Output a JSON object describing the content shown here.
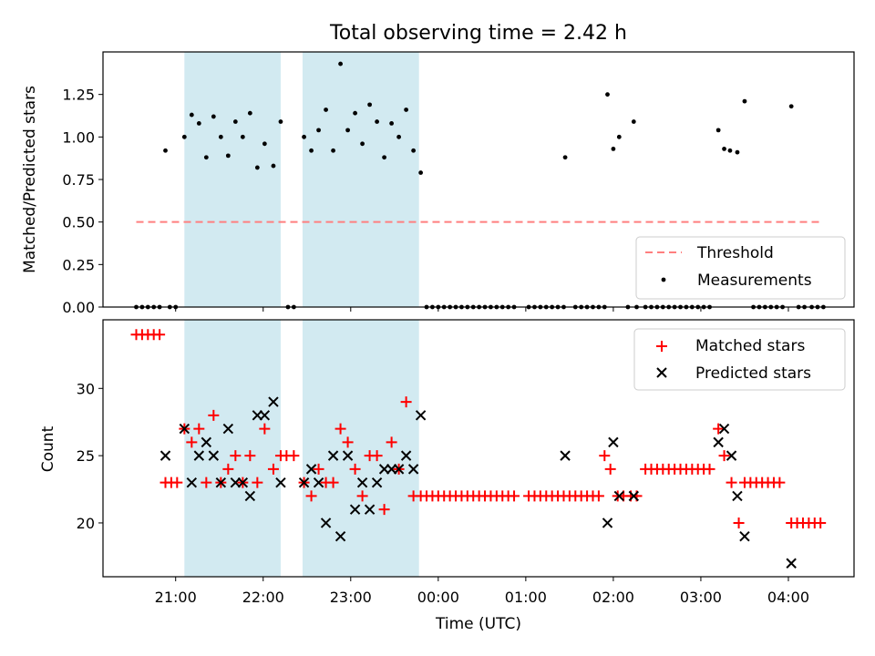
{
  "chart_data": [
    {
      "type": "scatter",
      "title": "Total observing time = 2.42 h",
      "xlabel": "",
      "ylabel": "Matched/Predicted stars",
      "xlim": [
        20.17,
        4.75
      ],
      "ylim": [
        0,
        1.5
      ],
      "yticks": [
        "0.00",
        "0.25",
        "0.50",
        "0.75",
        "1.00",
        "1.25"
      ],
      "shaded_intervals": [
        [
          21.1,
          22.2
        ],
        [
          22.45,
          23.78
        ]
      ],
      "shade_color": "#add8e6",
      "legend_position": "lower right",
      "legend": [
        "Threshold",
        "Measurements"
      ],
      "threshold": {
        "name": "Threshold",
        "y": 0.5,
        "x_range": [
          20.55,
          4.4
        ],
        "color": "#ff7f7f"
      },
      "series": [
        {
          "name": "Measurements",
          "color": "#000000",
          "points": [
            [
              "20:33",
              0
            ],
            [
              "20:37",
              0
            ],
            [
              "20:41",
              0
            ],
            [
              "20:45",
              0
            ],
            [
              "20:49",
              0
            ],
            [
              "20:56",
              0
            ],
            [
              "21:00",
              0
            ],
            [
              "20:53",
              0.92
            ],
            [
              "21:06",
              1.0
            ],
            [
              "21:11",
              1.13
            ],
            [
              "21:16",
              1.08
            ],
            [
              "21:21",
              0.88
            ],
            [
              "21:26",
              1.12
            ],
            [
              "21:31",
              1.0
            ],
            [
              "21:36",
              0.89
            ],
            [
              "21:41",
              1.09
            ],
            [
              "21:46",
              1.0
            ],
            [
              "21:51",
              1.14
            ],
            [
              "21:56",
              0.82
            ],
            [
              "22:01",
              0.96
            ],
            [
              "22:07",
              0.83
            ],
            [
              "22:12",
              1.09
            ],
            [
              "22:17",
              0
            ],
            [
              "22:21",
              0
            ],
            [
              "22:28",
              1.0
            ],
            [
              "22:33",
              0.92
            ],
            [
              "22:38",
              1.04
            ],
            [
              "22:43",
              1.16
            ],
            [
              "22:48",
              0.92
            ],
            [
              "22:53",
              1.43
            ],
            [
              "22:58",
              1.04
            ],
            [
              "23:03",
              1.14
            ],
            [
              "23:08",
              0.96
            ],
            [
              "23:13",
              1.19
            ],
            [
              "23:18",
              1.09
            ],
            [
              "23:23",
              0.88
            ],
            [
              "23:28",
              1.08
            ],
            [
              "23:33",
              1.0
            ],
            [
              "23:38",
              1.16
            ],
            [
              "23:43",
              0.92
            ],
            [
              "23:48",
              0.79
            ],
            [
              "23:52",
              0
            ],
            [
              "23:56",
              0
            ],
            [
              "00:00",
              0
            ],
            [
              "00:04",
              0
            ],
            [
              "00:08",
              0
            ],
            [
              "00:12",
              0
            ],
            [
              "00:16",
              0
            ],
            [
              "00:20",
              0
            ],
            [
              "00:24",
              0
            ],
            [
              "00:28",
              0
            ],
            [
              "00:32",
              0
            ],
            [
              "00:36",
              0
            ],
            [
              "00:40",
              0
            ],
            [
              "00:44",
              0
            ],
            [
              "00:48",
              0
            ],
            [
              "00:52",
              0
            ],
            [
              "01:02",
              0
            ],
            [
              "01:06",
              0
            ],
            [
              "01:10",
              0
            ],
            [
              "01:14",
              0
            ],
            [
              "01:18",
              0
            ],
            [
              "01:22",
              0
            ],
            [
              "01:26",
              0
            ],
            [
              "01:34",
              0
            ],
            [
              "01:38",
              0
            ],
            [
              "01:42",
              0
            ],
            [
              "01:46",
              0
            ],
            [
              "01:50",
              0
            ],
            [
              "01:54",
              0
            ],
            [
              "01:27",
              0.88
            ],
            [
              "01:56",
              1.25
            ],
            [
              "02:00",
              0.93
            ],
            [
              "02:04",
              1.0
            ],
            [
              "02:14",
              1.09
            ],
            [
              "02:10",
              0
            ],
            [
              "02:16",
              0
            ],
            [
              "02:22",
              0
            ],
            [
              "02:26",
              0
            ],
            [
              "02:30",
              0
            ],
            [
              "02:34",
              0
            ],
            [
              "02:38",
              0
            ],
            [
              "02:42",
              0
            ],
            [
              "02:46",
              0
            ],
            [
              "02:50",
              0
            ],
            [
              "02:54",
              0
            ],
            [
              "02:58",
              0
            ],
            [
              "03:02",
              0
            ],
            [
              "03:06",
              0
            ],
            [
              "03:12",
              1.04
            ],
            [
              "03:16",
              0.93
            ],
            [
              "03:20",
              0.92
            ],
            [
              "03:25",
              0.91
            ],
            [
              "03:30",
              1.21
            ],
            [
              "03:36",
              0
            ],
            [
              "03:40",
              0
            ],
            [
              "03:44",
              0
            ],
            [
              "03:48",
              0
            ],
            [
              "03:52",
              0
            ],
            [
              "03:56",
              0
            ],
            [
              "04:02",
              1.18
            ],
            [
              "04:07",
              0
            ],
            [
              "04:11",
              0
            ],
            [
              "04:16",
              0
            ],
            [
              "04:20",
              0
            ],
            [
              "04:24",
              0
            ]
          ]
        }
      ]
    },
    {
      "type": "scatter",
      "title": "",
      "xlabel": "Time (UTC)",
      "ylabel": "Count",
      "xlim": [
        20.17,
        4.75
      ],
      "ylim": [
        16.0,
        35.1
      ],
      "xticks": [
        "21:00",
        "22:00",
        "23:00",
        "00:00",
        "01:00",
        "02:00",
        "03:00",
        "04:00"
      ],
      "yticks": [
        "20",
        "25",
        "30"
      ],
      "shaded_intervals": [
        [
          21.1,
          22.2
        ],
        [
          22.45,
          23.78
        ]
      ],
      "shade_color": "#add8e6",
      "legend_position": "upper right",
      "legend": [
        "Matched stars",
        "Predicted stars"
      ],
      "series": [
        {
          "name": "Matched stars",
          "marker": "+",
          "color": "#ff0000",
          "points": [
            [
              "20:33",
              34
            ],
            [
              "20:37",
              34
            ],
            [
              "20:41",
              34
            ],
            [
              "20:45",
              34
            ],
            [
              "20:49",
              34
            ],
            [
              "20:53",
              23
            ],
            [
              "20:57",
              23
            ],
            [
              "21:01",
              23
            ],
            [
              "21:06",
              27
            ],
            [
              "21:11",
              26
            ],
            [
              "21:16",
              27
            ],
            [
              "21:21",
              23
            ],
            [
              "21:26",
              28
            ],
            [
              "21:31",
              23
            ],
            [
              "21:36",
              24
            ],
            [
              "21:41",
              25
            ],
            [
              "21:46",
              23
            ],
            [
              "21:51",
              25
            ],
            [
              "21:56",
              23
            ],
            [
              "22:01",
              27
            ],
            [
              "22:07",
              24
            ],
            [
              "22:12",
              25
            ],
            [
              "22:16",
              25
            ],
            [
              "22:21",
              25
            ],
            [
              "22:28",
              23
            ],
            [
              "22:33",
              22
            ],
            [
              "22:38",
              24
            ],
            [
              "22:43",
              23
            ],
            [
              "22:48",
              23
            ],
            [
              "22:53",
              27
            ],
            [
              "22:58",
              26
            ],
            [
              "23:03",
              24
            ],
            [
              "23:08",
              22
            ],
            [
              "23:13",
              25
            ],
            [
              "23:18",
              25
            ],
            [
              "23:23",
              21
            ],
            [
              "23:28",
              26
            ],
            [
              "23:33",
              24
            ],
            [
              "23:38",
              29
            ],
            [
              "23:43",
              22
            ],
            [
              "23:48",
              22
            ],
            [
              "23:52",
              22
            ],
            [
              "23:56",
              22
            ],
            [
              "00:00",
              22
            ],
            [
              "00:04",
              22
            ],
            [
              "00:08",
              22
            ],
            [
              "00:12",
              22
            ],
            [
              "00:16",
              22
            ],
            [
              "00:20",
              22
            ],
            [
              "00:24",
              22
            ],
            [
              "00:28",
              22
            ],
            [
              "00:32",
              22
            ],
            [
              "00:36",
              22
            ],
            [
              "00:40",
              22
            ],
            [
              "00:44",
              22
            ],
            [
              "00:48",
              22
            ],
            [
              "00:52",
              22
            ],
            [
              "01:02",
              22
            ],
            [
              "01:06",
              22
            ],
            [
              "01:10",
              22
            ],
            [
              "01:14",
              22
            ],
            [
              "01:18",
              22
            ],
            [
              "01:22",
              22
            ],
            [
              "01:26",
              22
            ],
            [
              "01:30",
              22
            ],
            [
              "01:34",
              22
            ],
            [
              "01:38",
              22
            ],
            [
              "01:42",
              22
            ],
            [
              "01:46",
              22
            ],
            [
              "01:50",
              22
            ],
            [
              "01:54",
              25
            ],
            [
              "01:58",
              24
            ],
            [
              "02:03",
              22
            ],
            [
              "02:07",
              22
            ],
            [
              "02:12",
              22
            ],
            [
              "02:16",
              22
            ],
            [
              "02:22",
              24
            ],
            [
              "02:26",
              24
            ],
            [
              "02:30",
              24
            ],
            [
              "02:34",
              24
            ],
            [
              "02:38",
              24
            ],
            [
              "02:42",
              24
            ],
            [
              "02:46",
              24
            ],
            [
              "02:50",
              24
            ],
            [
              "02:54",
              24
            ],
            [
              "02:58",
              24
            ],
            [
              "03:02",
              24
            ],
            [
              "03:06",
              24
            ],
            [
              "03:12",
              27
            ],
            [
              "03:16",
              25
            ],
            [
              "03:21",
              23
            ],
            [
              "03:26",
              20
            ],
            [
              "03:30",
              23
            ],
            [
              "03:34",
              23
            ],
            [
              "03:38",
              23
            ],
            [
              "03:42",
              23
            ],
            [
              "03:46",
              23
            ],
            [
              "03:50",
              23
            ],
            [
              "03:54",
              23
            ],
            [
              "04:02",
              20
            ],
            [
              "04:06",
              20
            ],
            [
              "04:10",
              20
            ],
            [
              "04:14",
              20
            ],
            [
              "04:18",
              20
            ],
            [
              "04:22",
              20
            ]
          ]
        },
        {
          "name": "Predicted stars",
          "marker": "x",
          "color": "#000000",
          "points": [
            [
              "20:53",
              25
            ],
            [
              "21:06",
              27
            ],
            [
              "21:11",
              23
            ],
            [
              "21:16",
              25
            ],
            [
              "21:21",
              26
            ],
            [
              "21:26",
              25
            ],
            [
              "21:31",
              23
            ],
            [
              "21:36",
              27
            ],
            [
              "21:41",
              23
            ],
            [
              "21:46",
              23
            ],
            [
              "21:51",
              22
            ],
            [
              "21:56",
              28
            ],
            [
              "22:01",
              28
            ],
            [
              "22:07",
              29
            ],
            [
              "22:12",
              23
            ],
            [
              "22:28",
              23
            ],
            [
              "22:33",
              24
            ],
            [
              "22:38",
              23
            ],
            [
              "22:43",
              20
            ],
            [
              "22:48",
              25
            ],
            [
              "22:53",
              19
            ],
            [
              "22:58",
              25
            ],
            [
              "23:03",
              21
            ],
            [
              "23:08",
              23
            ],
            [
              "23:13",
              21
            ],
            [
              "23:18",
              23
            ],
            [
              "23:23",
              24
            ],
            [
              "23:28",
              24
            ],
            [
              "23:33",
              24
            ],
            [
              "23:38",
              25
            ],
            [
              "23:43",
              24
            ],
            [
              "23:48",
              28
            ],
            [
              "01:27",
              25
            ],
            [
              "01:56",
              20
            ],
            [
              "02:00",
              26
            ],
            [
              "02:04",
              22
            ],
            [
              "02:14",
              22
            ],
            [
              "03:12",
              26
            ],
            [
              "03:16",
              27
            ],
            [
              "03:21",
              25
            ],
            [
              "03:25",
              22
            ],
            [
              "03:30",
              19
            ],
            [
              "04:02",
              17
            ]
          ]
        }
      ]
    }
  ]
}
